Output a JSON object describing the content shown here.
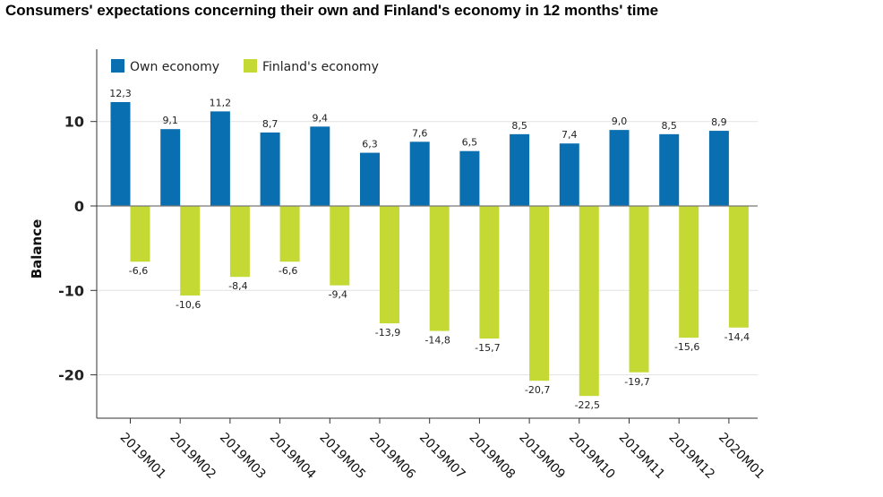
{
  "title": "Consumers' expectations concerning their own and Finland's economy in 12 months' time",
  "chart_data": {
    "type": "bar",
    "categories": [
      "2019M01",
      "2019M02",
      "2019M03",
      "2019M04",
      "2019M05",
      "2019M06",
      "2019M07",
      "2019M08",
      "2019M09",
      "2019M10",
      "2019M11",
      "2019M12",
      "2020M01"
    ],
    "series": [
      {
        "name": "Own economy",
        "color": "#0a6fb0",
        "values": [
          12.3,
          9.1,
          11.2,
          8.7,
          9.4,
          6.3,
          7.6,
          6.5,
          8.5,
          7.4,
          9.0,
          8.5,
          8.9
        ],
        "labels": [
          "12,3",
          "9,1",
          "11,2",
          "8,7",
          "9,4",
          "6,3",
          "7,6",
          "6,5",
          "8,5",
          "7,4",
          "9,0",
          "8,5",
          "8,9"
        ]
      },
      {
        "name": "Finland's economy",
        "color": "#c4d934",
        "values": [
          -6.6,
          -10.6,
          -8.4,
          -6.6,
          -9.4,
          -13.9,
          -14.8,
          -15.7,
          -20.7,
          -22.5,
          -19.7,
          -15.6,
          -14.4
        ],
        "labels": [
          "-6,6",
          "-10,6",
          "-8,4",
          "-6,6",
          "-9,4",
          "-13,9",
          "-14,8",
          "-15,7",
          "-20,7",
          "-22,5",
          "-19,7",
          "-15,6",
          "-14,4"
        ]
      }
    ],
    "ylabel": "Balance",
    "xlabel": "",
    "ylim": [
      -25,
      19
    ],
    "yticks": [
      10,
      0,
      -10,
      -20
    ],
    "ytick_labels": [
      "10",
      "0",
      "-10",
      "-20"
    ],
    "grid": true,
    "legend_position": "top-left"
  }
}
